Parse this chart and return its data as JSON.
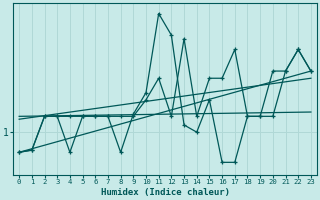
{
  "xlabel": "Humidex (Indice chaleur)",
  "bg_color": "#c8eae8",
  "grid_color": "#b0d8d6",
  "line_color": "#005858",
  "xlim": [
    -0.5,
    23.5
  ],
  "ylim": [
    0.4,
    2.8
  ],
  "xticks": [
    0,
    1,
    2,
    3,
    4,
    5,
    6,
    7,
    8,
    9,
    10,
    11,
    12,
    13,
    14,
    15,
    16,
    17,
    18,
    19,
    20,
    21,
    22,
    23
  ],
  "ytick_val": 1.0,
  "ytick_label": "1",
  "trend_lines": [
    {
      "x0": 0,
      "y0": 0.72,
      "x1": 23,
      "y1": 1.85
    },
    {
      "x0": 0,
      "y0": 1.18,
      "x1": 23,
      "y1": 1.75
    },
    {
      "x0": 0,
      "y0": 1.22,
      "x1": 23,
      "y1": 1.28
    }
  ],
  "data_line1": {
    "x": [
      0,
      1,
      2,
      3,
      4,
      5,
      6,
      7,
      8,
      9,
      10,
      11,
      12,
      13,
      14,
      15,
      16,
      17,
      18,
      19,
      20,
      21,
      22,
      23
    ],
    "y": [
      0.72,
      0.75,
      1.22,
      1.22,
      0.72,
      1.22,
      1.22,
      1.22,
      0.72,
      1.25,
      1.55,
      2.65,
      2.35,
      1.1,
      1.0,
      1.45,
      0.58,
      0.58,
      1.22,
      1.22,
      1.85,
      1.85,
      2.15,
      1.85
    ]
  },
  "data_line2": {
    "x": [
      0,
      1,
      2,
      3,
      4,
      5,
      6,
      7,
      8,
      9,
      10,
      11,
      12,
      13,
      14,
      15,
      16,
      17,
      18,
      19,
      20,
      21,
      22,
      23
    ],
    "y": [
      0.72,
      0.75,
      1.22,
      1.22,
      1.22,
      1.22,
      1.22,
      1.22,
      1.22,
      1.22,
      1.45,
      1.75,
      1.22,
      2.3,
      1.22,
      1.75,
      1.75,
      2.15,
      1.22,
      1.22,
      1.22,
      1.85,
      2.15,
      1.85
    ]
  }
}
